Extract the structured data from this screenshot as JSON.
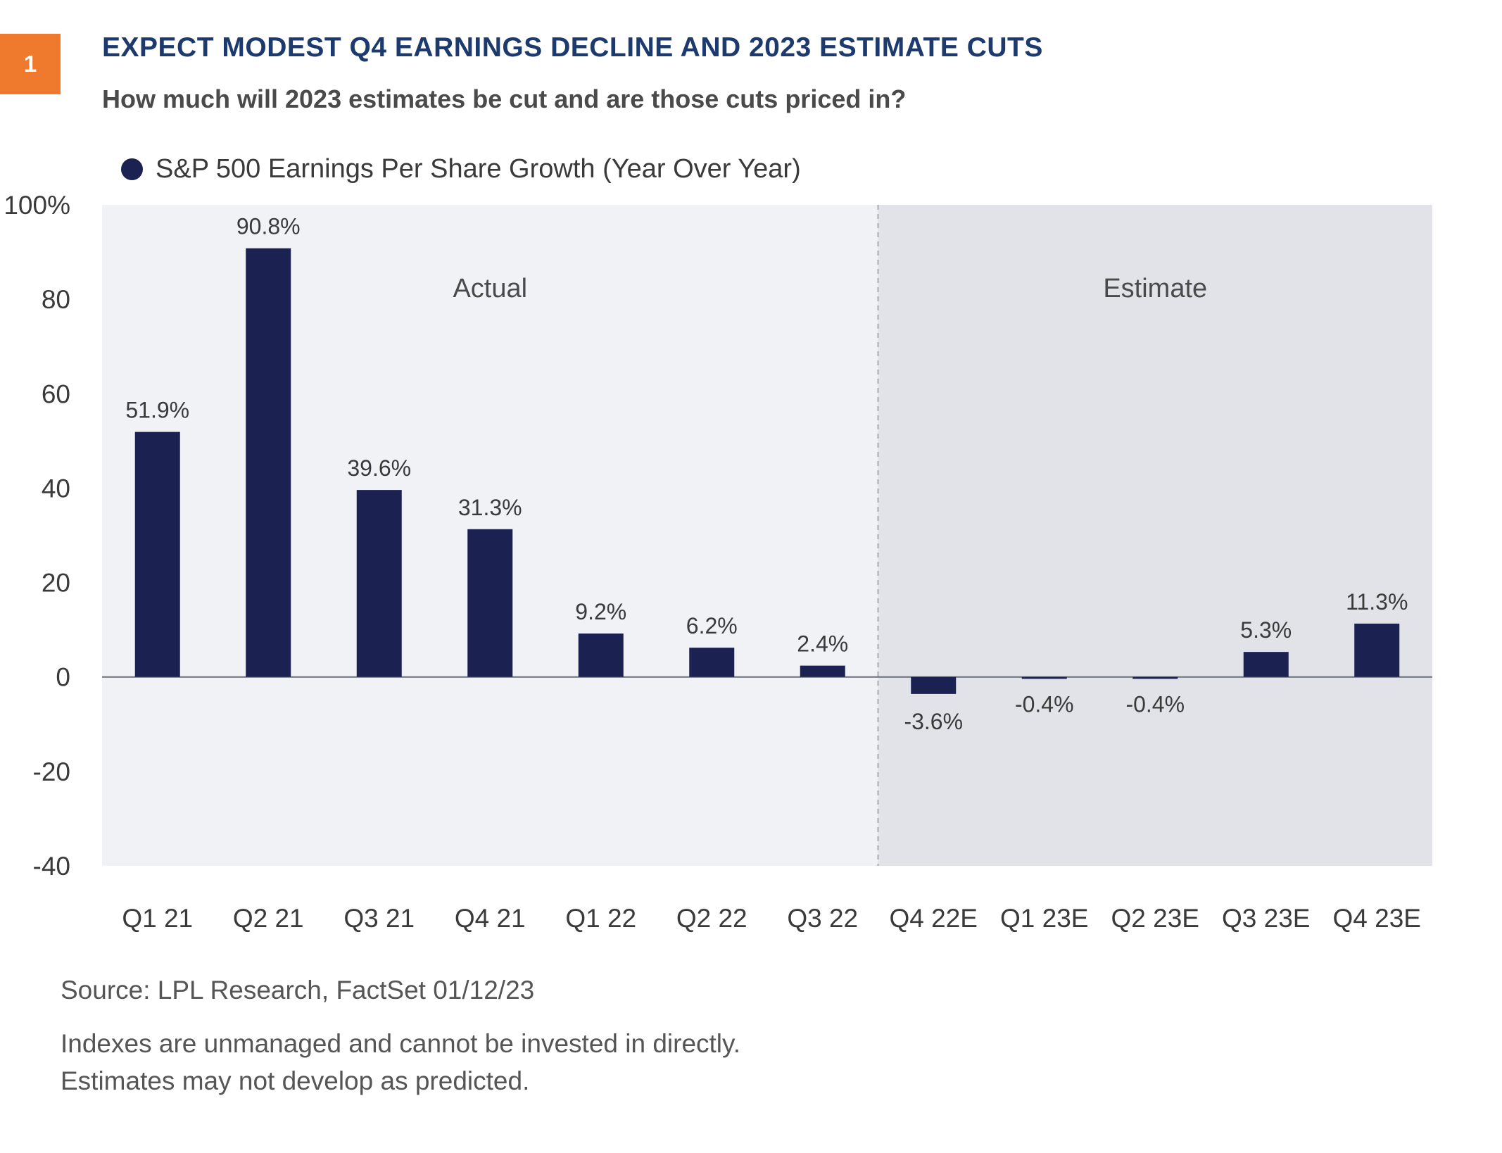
{
  "figure": {
    "number": "1",
    "title": "EXPECT MODEST Q4 EARNINGS DECLINE AND 2023 ESTIMATE CUTS",
    "subtitle": "How much will 2023 estimates be cut and are those cuts priced in?"
  },
  "colors": {
    "badge": "#ef7a2d",
    "title": "#1c3a6e",
    "bar": "#1b2150",
    "actual_region": "#f1f2f5",
    "estimate_region": "#e1e3e8"
  },
  "chart_data": {
    "type": "bar",
    "legend": [
      {
        "label": "S&P 500 Earnings Per Share Growth (Year Over Year)",
        "marker": "circle"
      }
    ],
    "categories": [
      "Q1 21",
      "Q2 21",
      "Q3 21",
      "Q4 21",
      "Q1 22",
      "Q2 22",
      "Q3 22",
      "Q4 22E",
      "Q1 23E",
      "Q2 23E",
      "Q3 23E",
      "Q4 23E"
    ],
    "series": [
      {
        "name": "S&P 500 Earnings Per Share Growth (Year Over Year)",
        "values": [
          51.9,
          90.8,
          39.6,
          31.3,
          9.2,
          6.2,
          2.4,
          -3.6,
          -0.4,
          -0.4,
          5.3,
          11.3
        ]
      }
    ],
    "data_labels": [
      "51.9%",
      "90.8%",
      "39.6%",
      "31.3%",
      "9.2%",
      "6.2%",
      "2.4%",
      "-3.6%",
      "-0.4%",
      "-0.4%",
      "5.3%",
      "11.3%"
    ],
    "ylim": [
      -40,
      100
    ],
    "yticks": [
      100,
      80,
      60,
      40,
      20,
      0,
      -20,
      -40
    ],
    "ytick_labels": [
      "100%",
      "80",
      "60",
      "40",
      "20",
      "0",
      "-20",
      "-40"
    ],
    "regions": [
      {
        "label": "Actual",
        "from": "Q1 21",
        "to": "Q3 22"
      },
      {
        "label": "Estimate",
        "from": "Q4 22E",
        "to": "Q4 23E"
      }
    ],
    "legend_position": "top-left",
    "grid": false
  },
  "footer": {
    "source": "Source: LPL Research, FactSet  01/12/23",
    "notes": [
      "Indexes are unmanaged and cannot be invested in directly.",
      "Estimates may not develop as predicted."
    ]
  }
}
